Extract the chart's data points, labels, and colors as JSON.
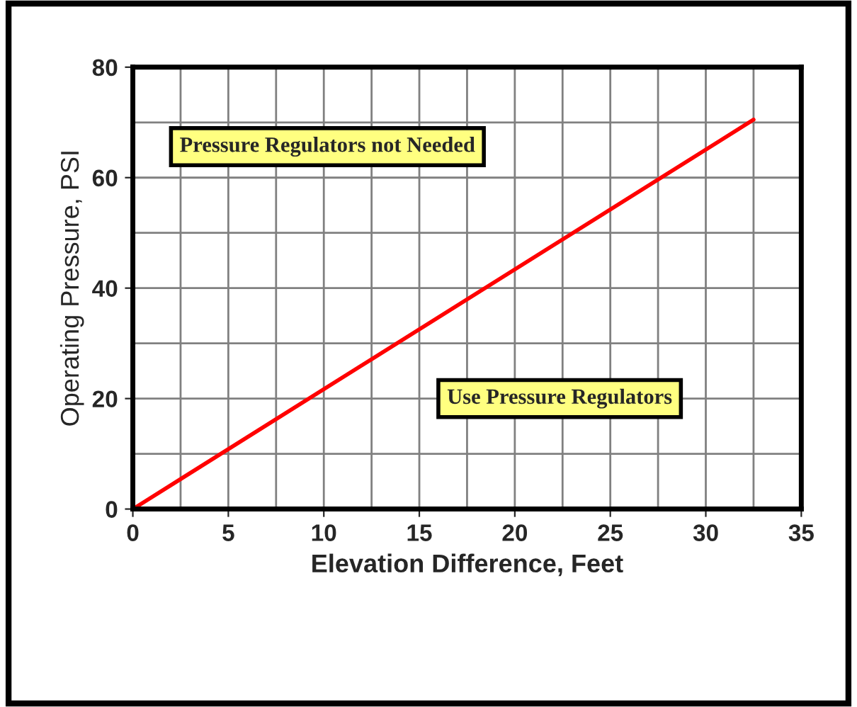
{
  "chart_data": {
    "type": "line",
    "xlabel": "Elevation Difference, Feet",
    "ylabel": "Operating Pressure, PSI",
    "x": [
      0,
      32.5
    ],
    "series": [
      {
        "color": "#ff0000",
        "values": [
          0,
          70.5
        ]
      }
    ],
    "xlim": [
      0,
      35
    ],
    "xticks": [
      0,
      5,
      10,
      15,
      20,
      25,
      30,
      35
    ],
    "ylim": [
      0,
      80
    ],
    "yticks": [
      0,
      20,
      40,
      60,
      80
    ],
    "grid": true,
    "legend": false,
    "marker": "none",
    "line_style": "solid",
    "annotations": [
      "Pressure Regulators not Needed",
      "Use Pressure Regulators"
    ]
  }
}
